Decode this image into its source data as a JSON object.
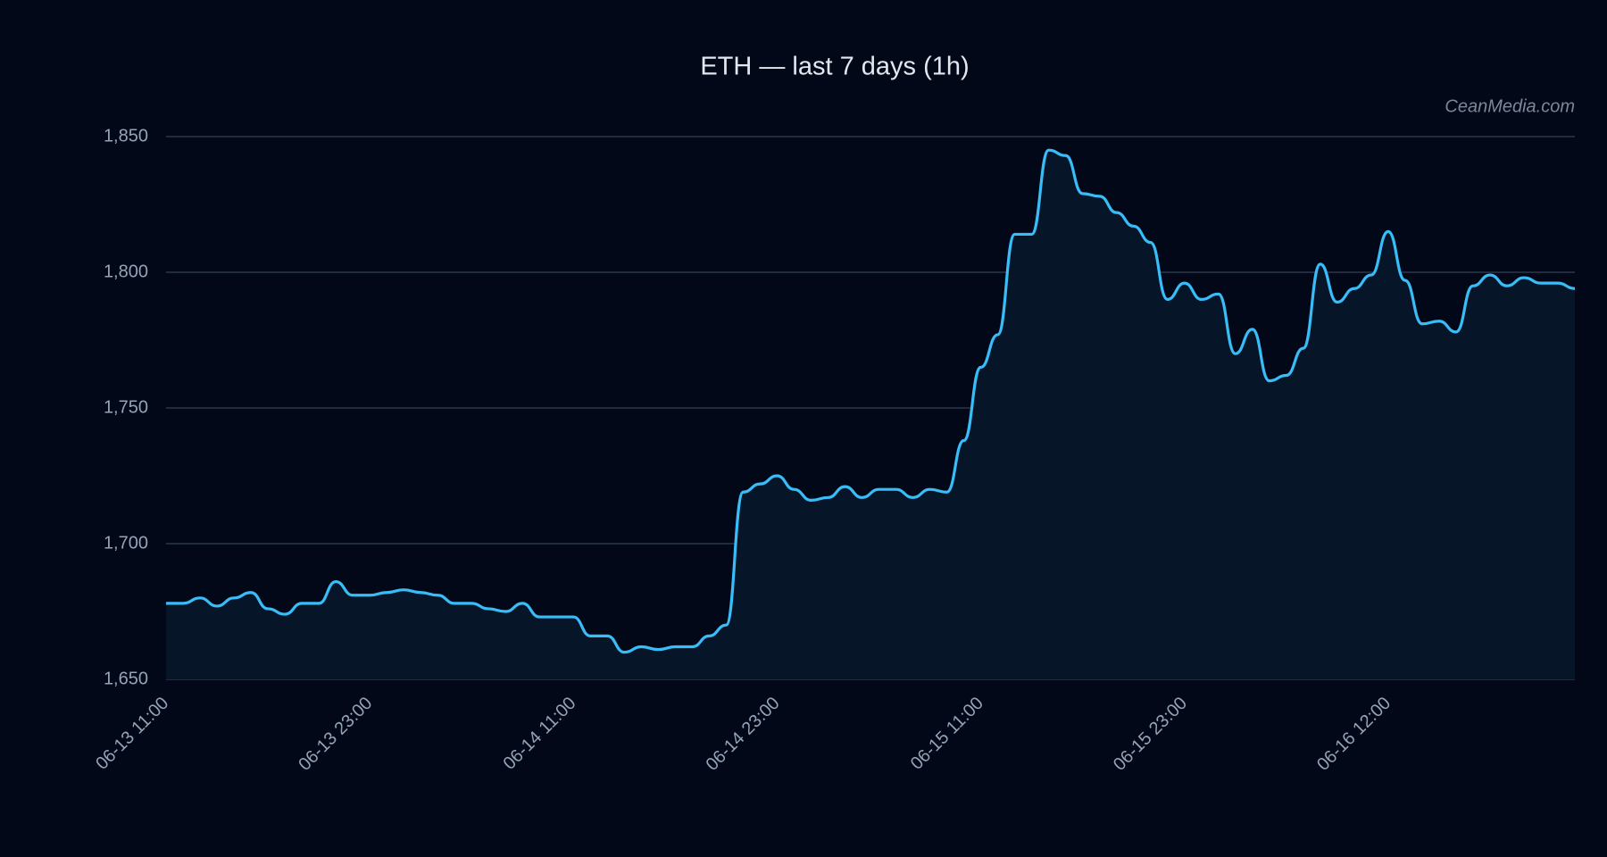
{
  "chart_data": {
    "type": "area-line",
    "title": "ETH — last 7 days (1h)",
    "watermark": "CeanMedia.com",
    "categories": [
      "06-13 11:00",
      null,
      null,
      null,
      null,
      null,
      null,
      null,
      null,
      null,
      null,
      null,
      "06-13 23:00",
      null,
      null,
      null,
      null,
      null,
      null,
      null,
      null,
      null,
      null,
      null,
      "06-14 11:00",
      null,
      null,
      null,
      null,
      null,
      null,
      null,
      null,
      null,
      null,
      null,
      "06-14 23:00",
      null,
      null,
      null,
      null,
      null,
      null,
      null,
      null,
      null,
      null,
      null,
      "06-15 11:00",
      null,
      null,
      null,
      null,
      null,
      null,
      null,
      null,
      null,
      null,
      null,
      "06-15 23:00",
      null,
      null,
      null,
      null,
      null,
      null,
      null,
      null,
      null,
      null,
      null,
      "06-16 12:00",
      null,
      null,
      null,
      null,
      null,
      null,
      null,
      null,
      null,
      null,
      null
    ],
    "values": [
      1678,
      1678,
      1680,
      1677,
      1680,
      1682,
      1676,
      1674,
      1678,
      1678,
      1686,
      1681,
      1681,
      1682,
      1683,
      1682,
      1681,
      1678,
      1678,
      1676,
      1675,
      1678,
      1673,
      1673,
      1673,
      1666,
      1666,
      1660,
      1662,
      1661,
      1662,
      1662,
      1666,
      1670,
      1719,
      1722,
      1725,
      1720,
      1716,
      1717,
      1721,
      1717,
      1720,
      1720,
      1717,
      1720,
      1719,
      1738,
      1765,
      1777,
      1814,
      1814,
      1845,
      1843,
      1829,
      1828,
      1822,
      1817,
      1811,
      1790,
      1796,
      1790,
      1792,
      1770,
      1779,
      1760,
      1762,
      1772,
      1803,
      1789,
      1794,
      1799,
      1815,
      1797,
      1781,
      1782,
      1778,
      1795,
      1799,
      1795,
      1798,
      1796,
      1796,
      1794
    ],
    "color": "#38bdf8",
    "fill": "#071528",
    "ylim": [
      1650,
      1850
    ],
    "yticks": [
      {
        "value": 1650,
        "label": "1,650"
      },
      {
        "value": 1700,
        "label": "1,700"
      },
      {
        "value": 1750,
        "label": "1,750"
      },
      {
        "value": 1800,
        "label": "1,800"
      },
      {
        "value": 1850,
        "label": "1,850"
      }
    ],
    "grid": true
  }
}
